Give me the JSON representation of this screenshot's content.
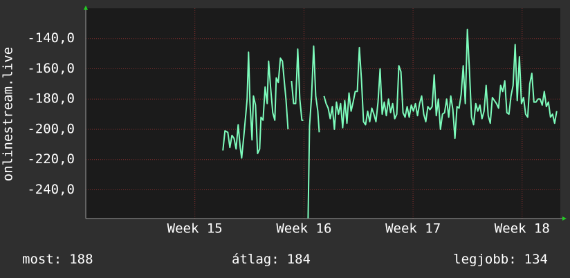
{
  "chart_data": {
    "type": "line",
    "y_label": "onlinestream.live",
    "xlim": [
      14,
      18.35
    ],
    "xticks": [
      {
        "value": 15,
        "label": "Week 15"
      },
      {
        "value": 16,
        "label": "Week 16"
      },
      {
        "value": 17,
        "label": "Week 17"
      },
      {
        "value": 18,
        "label": "Week 18"
      }
    ],
    "ylim": [
      -259,
      -120
    ],
    "yticks": [
      {
        "value": -240,
        "label": "-240,0"
      },
      {
        "value": -220,
        "label": "-220,0"
      },
      {
        "value": -200,
        "label": "-200,0"
      },
      {
        "value": -180,
        "label": "-180,0"
      },
      {
        "value": -160,
        "label": "-160,0"
      },
      {
        "value": -140,
        "label": "-140,0"
      }
    ],
    "grid": true,
    "color": "#7dfcbc",
    "x": [
      15.257,
      15.276,
      15.302,
      15.321,
      15.34,
      15.359,
      15.378,
      15.397,
      15.416,
      15.429,
      15.448,
      15.467,
      15.479,
      15.492,
      15.505,
      15.524,
      15.537,
      15.556,
      15.575,
      15.594,
      15.606,
      15.625,
      15.644,
      15.663,
      15.676,
      15.695,
      15.714,
      15.733,
      15.746,
      15.765,
      15.784,
      15.803,
      15.822,
      15.835,
      15.854,
      15.87,
      15.886,
      15.905,
      15.924,
      15.943,
      15.962,
      15.981,
      15.994,
      16.016,
      16.038,
      16.051,
      16.07,
      16.089,
      16.108,
      16.127,
      16.14,
      16.16,
      16.184,
      16.203,
      16.222,
      16.241,
      16.26,
      16.279,
      16.298,
      16.317,
      16.336,
      16.355,
      16.374,
      16.394,
      16.413,
      16.432,
      16.451,
      16.47,
      16.489,
      16.508,
      16.527,
      16.546,
      16.565,
      16.584,
      16.603,
      16.622,
      16.641,
      16.66,
      16.679,
      16.698,
      16.717,
      16.736,
      16.755,
      16.775,
      16.794,
      16.813,
      16.832,
      16.851,
      16.87,
      16.889,
      16.908,
      16.927,
      16.946,
      16.965,
      16.984,
      17.003,
      17.022,
      17.041,
      17.06,
      17.079,
      17.098,
      17.117,
      17.136,
      17.155,
      17.175,
      17.194,
      17.213,
      17.232,
      17.251,
      17.27,
      17.289,
      17.308,
      17.327,
      17.346,
      17.365,
      17.384,
      17.403,
      17.422,
      17.441,
      17.46,
      17.479,
      17.498,
      17.517,
      17.536,
      17.555,
      17.575,
      17.594,
      17.613,
      17.632,
      17.651,
      17.67,
      17.689,
      17.708,
      17.727,
      17.746,
      17.765,
      17.784,
      17.803,
      17.822,
      17.841,
      17.86,
      17.879,
      17.898,
      17.917,
      17.936,
      17.955,
      17.975,
      17.994,
      18.013,
      18.032,
      18.051,
      18.07,
      18.089,
      18.108,
      18.127,
      18.146,
      18.165,
      18.184,
      18.203,
      18.222,
      18.241,
      18.26,
      18.279,
      18.298,
      18.317
    ],
    "values": [
      -214,
      -201,
      -202,
      -212,
      -204,
      -206,
      -213,
      -197,
      -212,
      -219,
      -205,
      -190,
      -180,
      -149,
      -182,
      -207,
      -178,
      -184,
      -216,
      -213,
      -192,
      -194,
      -172,
      -183,
      -155,
      -173,
      -189,
      -194,
      -166,
      -169,
      -153,
      -155,
      -170,
      -180,
      -200,
      null,
      -168,
      -183,
      -183,
      -147,
      -180,
      -194,
      -194,
      null,
      -259,
      -198,
      -178,
      -145,
      -178,
      -188,
      -202,
      null,
      -178,
      -183,
      -186,
      -193,
      -185,
      -200,
      -182,
      -190,
      -183,
      -199,
      -181,
      -196,
      -176,
      -188,
      -182,
      -175,
      -175,
      -146,
      -167,
      -195,
      -197,
      -188,
      -195,
      -186,
      -190,
      -195,
      -182,
      -160,
      -190,
      -182,
      -191,
      -180,
      -189,
      -183,
      -193,
      -190,
      -158,
      -162,
      -189,
      -192,
      -185,
      -192,
      -184,
      -188,
      -183,
      -191,
      -183,
      -178,
      -190,
      -195,
      -185,
      -187,
      -185,
      -164,
      -191,
      -180,
      -200,
      -190,
      -189,
      -180,
      -192,
      -178,
      -187,
      -206,
      -185,
      -186,
      -177,
      -158,
      -183,
      -134,
      -161,
      -192,
      -197,
      -183,
      -188,
      -184,
      -193,
      -188,
      -171,
      -191,
      -196,
      -179,
      -181,
      -183,
      -186,
      -171,
      -175,
      -168,
      -189,
      -190,
      -178,
      -171,
      -144,
      -181,
      -152,
      -183,
      -179,
      -190,
      -192,
      -170,
      -163,
      -182,
      -182,
      -180,
      -180,
      -184,
      -175,
      -185,
      -182,
      -192,
      -190,
      -196,
      -188
    ],
    "stats": [
      {
        "label": "most:",
        "value": 188
      },
      {
        "label": "átlag:",
        "value": 184
      },
      {
        "label": "legjobb:",
        "value": 134
      }
    ]
  }
}
